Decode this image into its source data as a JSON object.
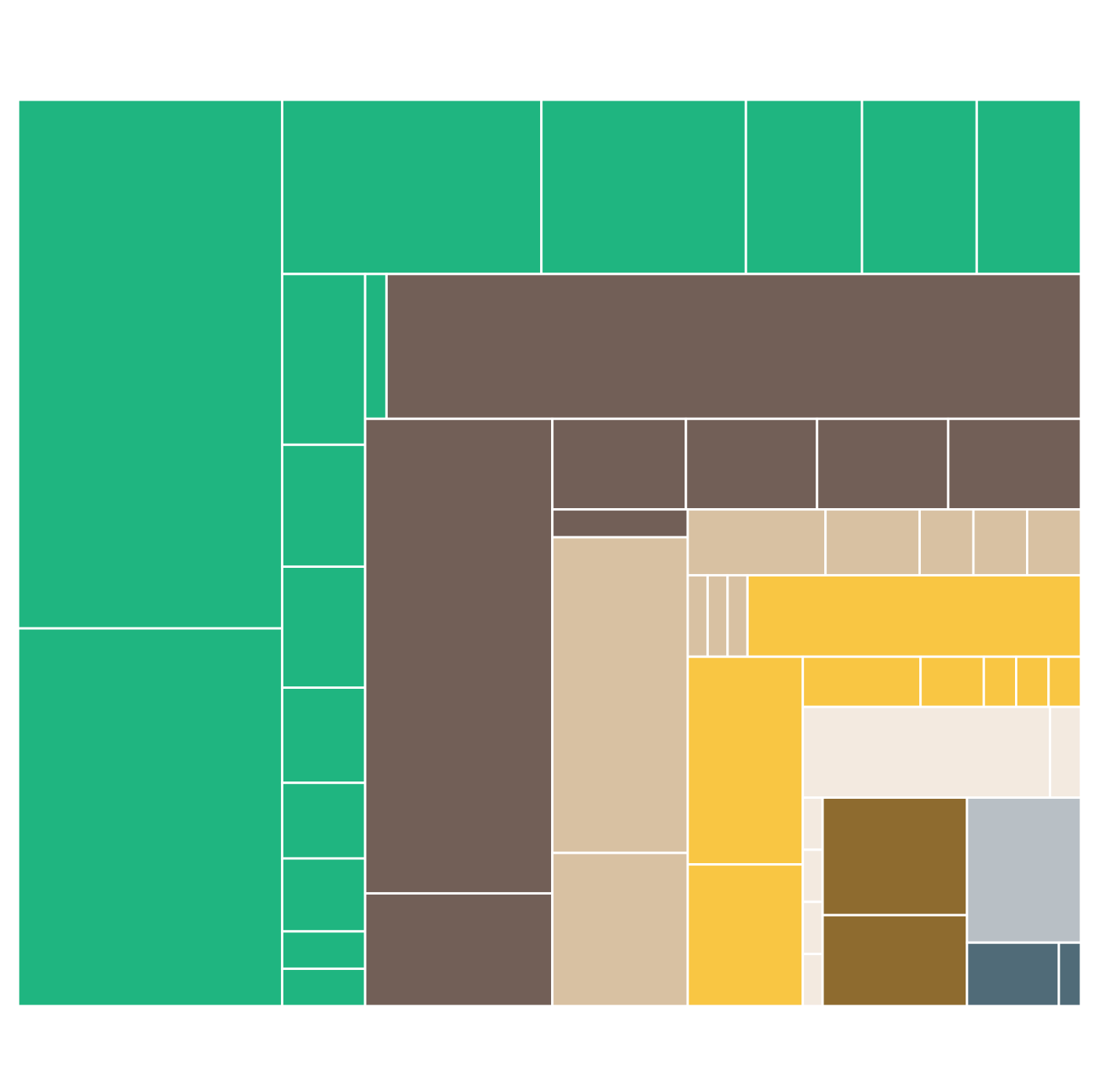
{
  "chart_data": {
    "type": "treemap",
    "title": "",
    "legend": "none",
    "colors": {
      "green": "#1fb580",
      "brown": "#725f57",
      "tan": "#d8c1a2",
      "yellow": "#f9c643",
      "cream": "#f3eae0",
      "olive": "#8e6b2f",
      "grey": "#b8bfc5",
      "slate": "#506b78"
    },
    "groups": [
      {
        "color": "#1fb580",
        "values": [
          189.2,
          135.2,
          61.2,
          48.3,
          27.4,
          27.1,
          24.6,
          19.2,
          13.7,
          13.6,
          10.7,
          8.5,
          8.2,
          4.2,
          4.2,
          4.2
        ]
      },
      {
        "color": "#725f57",
        "values": [
          136.3,
          120.4,
          28.6,
          16.4,
          16.1,
          16.1,
          16.3,
          5.1
        ]
      },
      {
        "color": "#d8c1a2",
        "values": [
          57.9,
          28.1,
          12.3,
          8.4,
          4.8,
          4.8,
          4.8,
          2.2,
          2.2,
          2.2
        ]
      },
      {
        "color": "#f9c643",
        "values": [
          36.8,
          32.4,
          22.1,
          8.0,
          4.3,
          2.2,
          2.2,
          2.2
        ]
      },
      {
        "color": "#f3eae0",
        "values": [
          30.4,
          3.8,
          1.4,
          1.4,
          1.4,
          1.4
        ]
      },
      {
        "color": "#8e6b2f",
        "values": [
          23.0,
          17.8
        ]
      },
      {
        "color": "#b8bfc5",
        "values": [
          22.4
        ]
      },
      {
        "color": "#506b78",
        "values": [
          7.9,
          1.9
        ]
      }
    ]
  }
}
